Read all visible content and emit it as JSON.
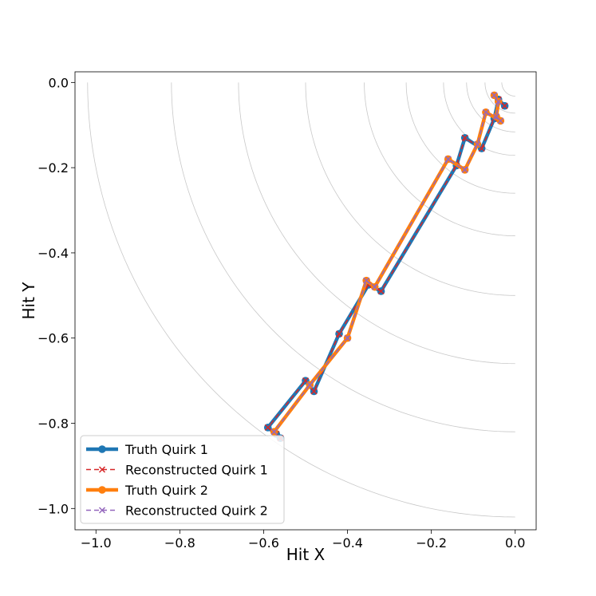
{
  "chart_data": {
    "type": "line",
    "title": "",
    "xlabel": "Hit X",
    "ylabel": "Hit Y",
    "xlim": [
      -1.05,
      0.05
    ],
    "ylim": [
      -1.05,
      0.025
    ],
    "xticks": [
      -1.0,
      -0.8,
      -0.6,
      -0.4,
      -0.2,
      0.0
    ],
    "xtick_labels": [
      "−1.0",
      "−0.8",
      "−0.6",
      "−0.4",
      "−0.2",
      "0.0"
    ],
    "yticks": [
      0.0,
      -0.2,
      -0.4,
      -0.6,
      -0.8,
      -1.0
    ],
    "ytick_labels": [
      "0.0",
      "−0.2",
      "−0.4",
      "−0.6",
      "−0.8",
      "−1.0"
    ],
    "grid": false,
    "detector_layer_radii": [
      0.032,
      0.072,
      0.116,
      0.171,
      0.26,
      0.36,
      0.5,
      0.66,
      0.82,
      1.02
    ],
    "legend_position": "lower-left",
    "series": [
      {
        "name": "Truth Quirk 1",
        "color": "#1f77b4",
        "style": "solid-circle",
        "x": [
          -0.025,
          -0.04,
          -0.05,
          -0.08,
          -0.12,
          -0.14,
          -0.32,
          -0.35,
          -0.42,
          -0.48,
          -0.5,
          -0.59,
          -0.57,
          -0.56
        ],
        "y": [
          -0.055,
          -0.04,
          -0.085,
          -0.155,
          -0.13,
          -0.195,
          -0.49,
          -0.475,
          -0.59,
          -0.725,
          -0.7,
          -0.81,
          -0.825,
          -0.835
        ]
      },
      {
        "name": "Reconstructed Quirk 1",
        "color": "#d62728",
        "style": "dashed-x",
        "x": [
          -0.025,
          -0.04,
          -0.05,
          -0.08,
          -0.12,
          -0.14,
          -0.32,
          -0.35,
          -0.42,
          -0.48,
          -0.5,
          -0.59,
          -0.57,
          -0.56
        ],
        "y": [
          -0.055,
          -0.04,
          -0.085,
          -0.155,
          -0.13,
          -0.195,
          -0.49,
          -0.475,
          -0.59,
          -0.725,
          -0.7,
          -0.81,
          -0.825,
          -0.835
        ]
      },
      {
        "name": "Truth Quirk 2",
        "color": "#ff7f0e",
        "style": "solid-circle",
        "x": [
          -0.05,
          -0.04,
          -0.045,
          -0.035,
          -0.07,
          -0.09,
          -0.12,
          -0.16,
          -0.335,
          -0.355,
          -0.4,
          -0.49,
          -0.575
        ],
        "y": [
          -0.03,
          -0.045,
          -0.08,
          -0.09,
          -0.07,
          -0.145,
          -0.205,
          -0.18,
          -0.48,
          -0.465,
          -0.6,
          -0.71,
          -0.82
        ]
      },
      {
        "name": "Reconstructed Quirk 2",
        "color": "#9467bd",
        "style": "dashed-x",
        "x": [
          -0.05,
          -0.04,
          -0.045,
          -0.035,
          -0.07,
          -0.09,
          -0.12,
          -0.16,
          -0.335,
          -0.355,
          -0.4,
          -0.49,
          -0.575
        ],
        "y": [
          -0.03,
          -0.045,
          -0.08,
          -0.09,
          -0.07,
          -0.145,
          -0.205,
          -0.18,
          -0.48,
          -0.465,
          -0.6,
          -0.71,
          -0.82
        ]
      }
    ]
  }
}
